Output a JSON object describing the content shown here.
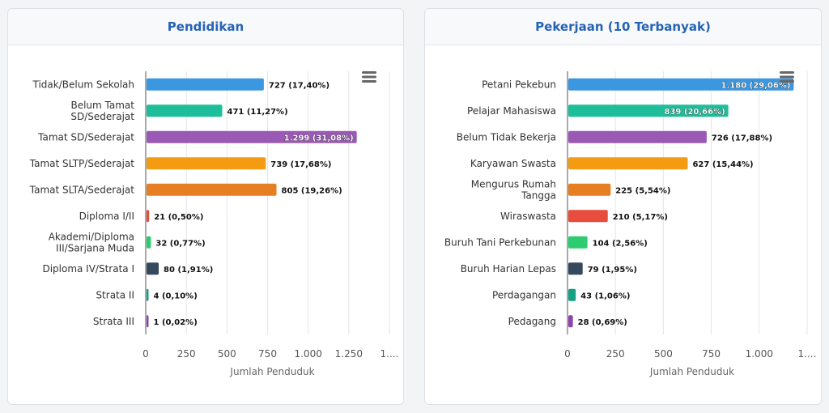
{
  "colors": {
    "title": "#2563b6",
    "blue": "#3a97e0",
    "teal": "#1fbe9b",
    "purple": "#9b59b6",
    "orange": "#f39c12",
    "dark_orange": "#e67e22",
    "red": "#e74c3c",
    "green": "#2ecc71",
    "navy": "#34495e",
    "dark_teal": "#16a085",
    "dark_purple": "#8e44ad"
  },
  "icons": {
    "menu": "hamburger-menu-icon"
  },
  "chart_data": [
    {
      "type": "bar",
      "orientation": "horizontal",
      "title": "Pendidikan",
      "xlabel": "Jumlah Penduduk",
      "ylabel": "",
      "xlim": [
        0,
        1500
      ],
      "grid": true,
      "x_ticks": [
        "0",
        "250",
        "500",
        "750",
        "1.000",
        "1.250",
        "1...."
      ],
      "categories": [
        [
          "Tidak/Belum Sekolah"
        ],
        [
          "Belum Tamat",
          "SD/Sederajat"
        ],
        [
          "Tamat SD/Sederajat"
        ],
        [
          "Tamat SLTP/Sederajat"
        ],
        [
          "Tamat SLTA/Sederajat"
        ],
        [
          "Diploma I/II"
        ],
        [
          "Akademi/Diploma",
          "III/Sarjana Muda"
        ],
        [
          "Diploma IV/Strata I"
        ],
        [
          "Strata II"
        ],
        [
          "Strata III"
        ]
      ],
      "values": [
        727,
        471,
        1299,
        739,
        805,
        21,
        32,
        80,
        4,
        1
      ],
      "data_labels": [
        "727 (17,40%)",
        "471 (11,27%)",
        "1.299 (31,08%)",
        "739 (17,68%)",
        "805 (19,26%)",
        "21 (0,50%)",
        "32 (0,77%)",
        "80 (1,91%)",
        "4 (0,10%)",
        "1 (0,02%)"
      ],
      "bar_colors": [
        "#3a97e0",
        "#1fbe9b",
        "#9b59b6",
        "#f39c12",
        "#e67e22",
        "#e74c3c",
        "#2ecc71",
        "#34495e",
        "#16a085",
        "#8e44ad"
      ]
    },
    {
      "type": "bar",
      "orientation": "horizontal",
      "title": "Pekerjaan (10 Terbanyak)",
      "xlabel": "Jumlah Penduduk",
      "ylabel": "",
      "xlim": [
        0,
        1250
      ],
      "grid": true,
      "x_ticks": [
        "0",
        "250",
        "500",
        "750",
        "1.000",
        "1...."
      ],
      "categories": [
        [
          "Petani Pekebun"
        ],
        [
          "Pelajar Mahasiswa"
        ],
        [
          "Belum Tidak Bekerja"
        ],
        [
          "Karyawan Swasta"
        ],
        [
          "Mengurus Rumah",
          "Tangga"
        ],
        [
          "Wiraswasta"
        ],
        [
          "Buruh Tani Perkebunan"
        ],
        [
          "Buruh Harian Lepas"
        ],
        [
          "Perdagangan"
        ],
        [
          "Pedagang"
        ]
      ],
      "values": [
        1180,
        839,
        726,
        627,
        225,
        210,
        104,
        79,
        43,
        28
      ],
      "data_labels": [
        "1.180 (29,06%)",
        "839 (20,66%)",
        "726 (17,88%)",
        "627 (15,44%)",
        "225 (5,54%)",
        "210 (5,17%)",
        "104 (2,56%)",
        "79 (1,95%)",
        "43 (1,06%)",
        "28 (0,69%)"
      ],
      "bar_colors": [
        "#3a97e0",
        "#1fbe9b",
        "#9b59b6",
        "#f39c12",
        "#e67e22",
        "#e74c3c",
        "#2ecc71",
        "#34495e",
        "#16a085",
        "#8e44ad"
      ]
    }
  ]
}
